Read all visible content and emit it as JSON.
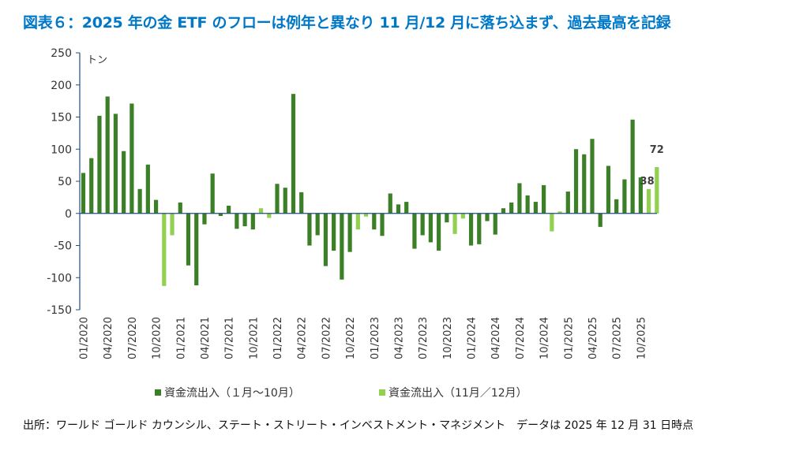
{
  "title": "図表６：2025 年の金 ETF のフローは例年と異なり 11 月/12 月に落ち込まず、過去最高を記録",
  "source": "出所：ワールド ゴールド カウンシル、ステート・ストリート・インベストメント・マネジメント　データは 2025 年 12 月 31 日時点",
  "colors": {
    "dark_green": "#3b7f27",
    "light_green": "#92d050",
    "axis": "#1f4e79"
  },
  "chart_data": {
    "type": "bar",
    "unit_label": "トン",
    "ylim": [
      -150,
      250
    ],
    "yticks": [
      250,
      200,
      150,
      100,
      50,
      0,
      -50,
      -100,
      -150
    ],
    "xtick_labels": [
      "01/2020",
      "04/2020",
      "07/2020",
      "10/2020",
      "01/2021",
      "04/2021",
      "07/2021",
      "10/2021",
      "01/2022",
      "04/2022",
      "07/2022",
      "10/2022",
      "01/2023",
      "04/2023",
      "07/2023",
      "10/2023",
      "01/2024",
      "04/2024",
      "07/2024",
      "10/2024",
      "01/2025",
      "04/2025",
      "07/2025",
      "10/2025"
    ],
    "categories": [
      "01/2020",
      "02/2020",
      "03/2020",
      "04/2020",
      "05/2020",
      "06/2020",
      "07/2020",
      "08/2020",
      "09/2020",
      "10/2020",
      "11/2020",
      "12/2020",
      "01/2021",
      "02/2021",
      "03/2021",
      "04/2021",
      "05/2021",
      "06/2021",
      "07/2021",
      "08/2021",
      "09/2021",
      "10/2021",
      "11/2021",
      "12/2021",
      "01/2022",
      "02/2022",
      "03/2022",
      "04/2022",
      "05/2022",
      "06/2022",
      "07/2022",
      "08/2022",
      "09/2022",
      "10/2022",
      "11/2022",
      "12/2022",
      "01/2023",
      "02/2023",
      "03/2023",
      "04/2023",
      "05/2023",
      "06/2023",
      "07/2023",
      "08/2023",
      "09/2023",
      "10/2023",
      "11/2023",
      "12/2023",
      "01/2024",
      "02/2024",
      "03/2024",
      "04/2024",
      "05/2024",
      "06/2024",
      "07/2024",
      "08/2024",
      "09/2024",
      "10/2024",
      "11/2024",
      "12/2024",
      "01/2025",
      "02/2025",
      "03/2025",
      "04/2025",
      "05/2025",
      "06/2025",
      "07/2025",
      "08/2025",
      "09/2025",
      "10/2025",
      "11/2025",
      "12/2025"
    ],
    "values": [
      63,
      86,
      152,
      182,
      155,
      97,
      171,
      38,
      76,
      21,
      -113,
      -34,
      17,
      -81,
      -112,
      -17,
      62,
      -4,
      12,
      -24,
      -20,
      -25,
      8,
      -7,
      46,
      40,
      186,
      33,
      -50,
      -34,
      -82,
      -58,
      -103,
      -60,
      -25,
      -5,
      -25,
      -35,
      31,
      14,
      18,
      -55,
      -34,
      -45,
      -58,
      -14,
      -32,
      -8,
      -50,
      -48,
      -12,
      -33,
      8,
      17,
      47,
      28,
      18,
      44,
      -28,
      3,
      34,
      100,
      92,
      116,
      -21,
      74,
      22,
      53,
      146,
      56,
      38,
      72
    ],
    "series": [
      {
        "name": "資金流出入（１月〜10月）",
        "color": "#3b7f27"
      },
      {
        "name": "資金流出入（11月／12月）",
        "color": "#92d050"
      }
    ],
    "annotations": [
      {
        "index": 70,
        "text": "38"
      },
      {
        "index": 71,
        "text": "72"
      }
    ]
  }
}
